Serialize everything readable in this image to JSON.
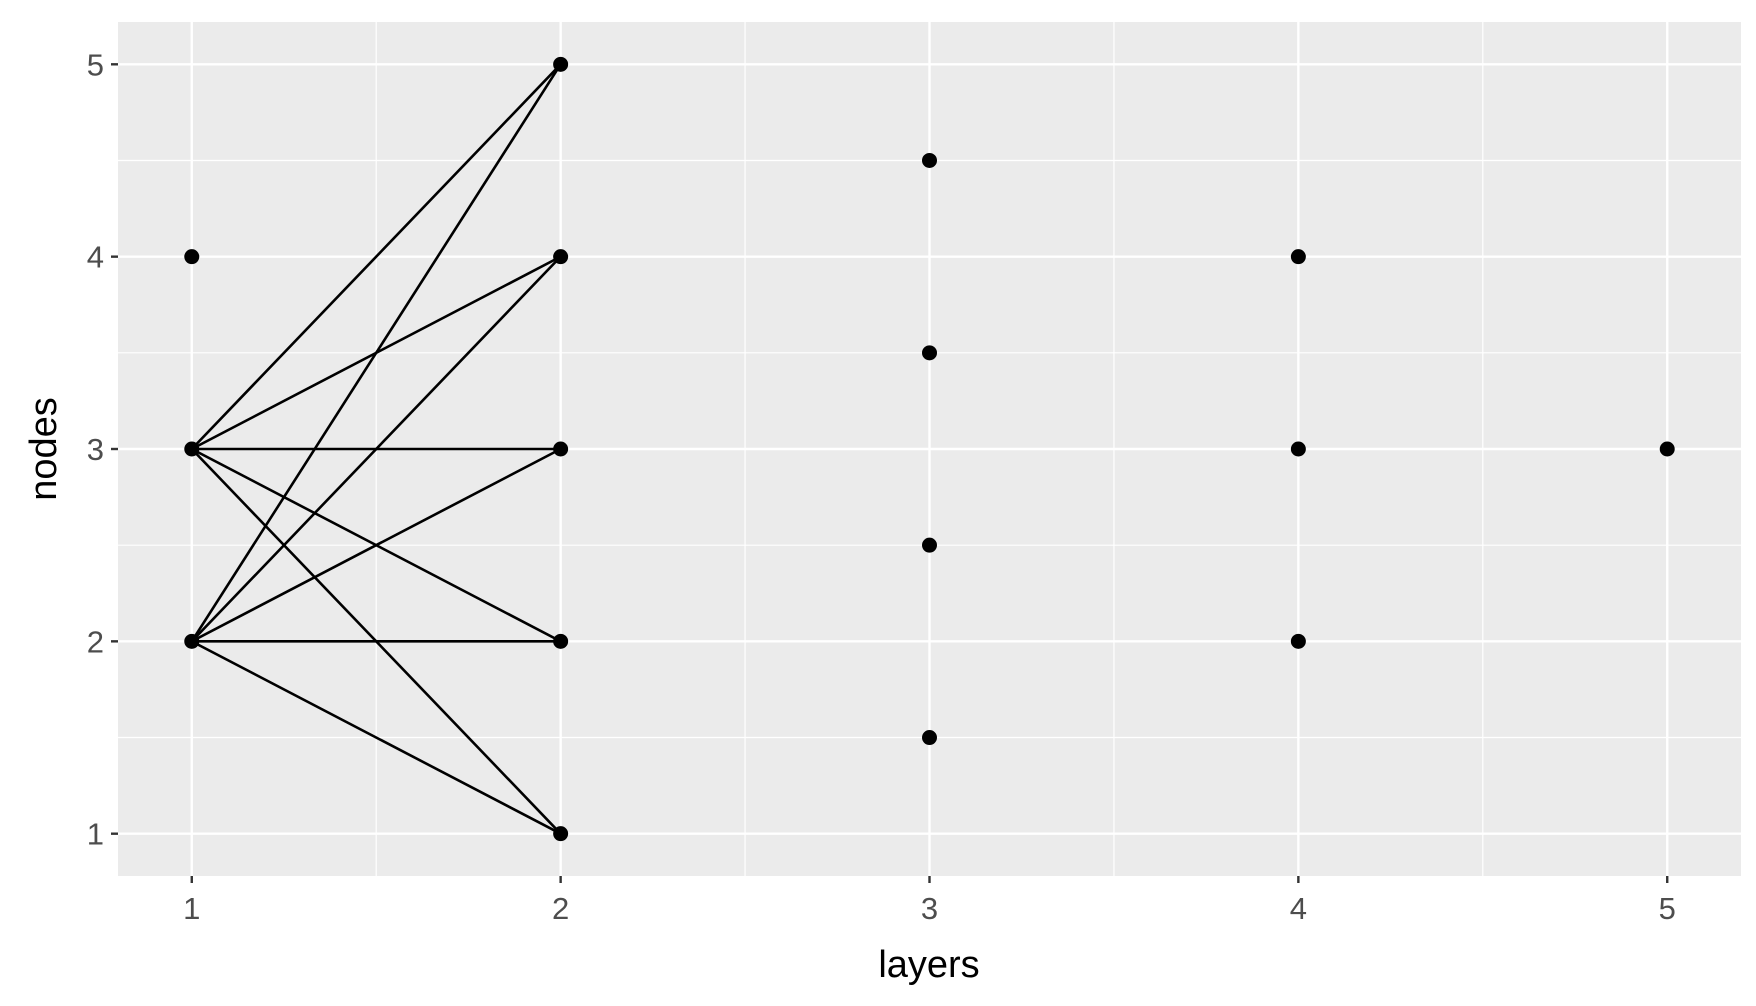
{
  "chart_data": {
    "type": "scatter",
    "title": "",
    "xlabel": "layers",
    "ylabel": "nodes",
    "xlim": [
      0.8,
      5.2
    ],
    "ylim": [
      0.78,
      5.22
    ],
    "x_ticks": [
      1,
      2,
      3,
      4,
      5
    ],
    "y_ticks": [
      1,
      2,
      3,
      4,
      5
    ],
    "grid": true,
    "legend": "none",
    "colors": {
      "panel_background": "#ebebeb",
      "grid_line": "#ffffff",
      "point": "#000000",
      "edge": "#000000",
      "tick_label": "#4d4d4d",
      "tick_mark": "#333333"
    },
    "points": [
      {
        "x": 1,
        "y": 4
      },
      {
        "x": 1,
        "y": 3
      },
      {
        "x": 1,
        "y": 2
      },
      {
        "x": 2,
        "y": 5
      },
      {
        "x": 2,
        "y": 4
      },
      {
        "x": 2,
        "y": 3
      },
      {
        "x": 2,
        "y": 2
      },
      {
        "x": 2,
        "y": 1
      },
      {
        "x": 3,
        "y": 4.5
      },
      {
        "x": 3,
        "y": 3.5
      },
      {
        "x": 3,
        "y": 2.5
      },
      {
        "x": 3,
        "y": 1.5
      },
      {
        "x": 4,
        "y": 4
      },
      {
        "x": 4,
        "y": 3
      },
      {
        "x": 4,
        "y": 2
      },
      {
        "x": 5,
        "y": 3
      }
    ],
    "edges": [
      {
        "from": [
          1,
          3
        ],
        "to": [
          2,
          5
        ]
      },
      {
        "from": [
          1,
          3
        ],
        "to": [
          2,
          4
        ]
      },
      {
        "from": [
          1,
          3
        ],
        "to": [
          2,
          3
        ]
      },
      {
        "from": [
          1,
          3
        ],
        "to": [
          2,
          2
        ]
      },
      {
        "from": [
          1,
          3
        ],
        "to": [
          2,
          1
        ]
      },
      {
        "from": [
          1,
          2
        ],
        "to": [
          2,
          5
        ]
      },
      {
        "from": [
          1,
          2
        ],
        "to": [
          2,
          4
        ]
      },
      {
        "from": [
          1,
          2
        ],
        "to": [
          2,
          3
        ]
      },
      {
        "from": [
          1,
          2
        ],
        "to": [
          2,
          2
        ]
      },
      {
        "from": [
          1,
          2
        ],
        "to": [
          2,
          1
        ]
      }
    ]
  }
}
